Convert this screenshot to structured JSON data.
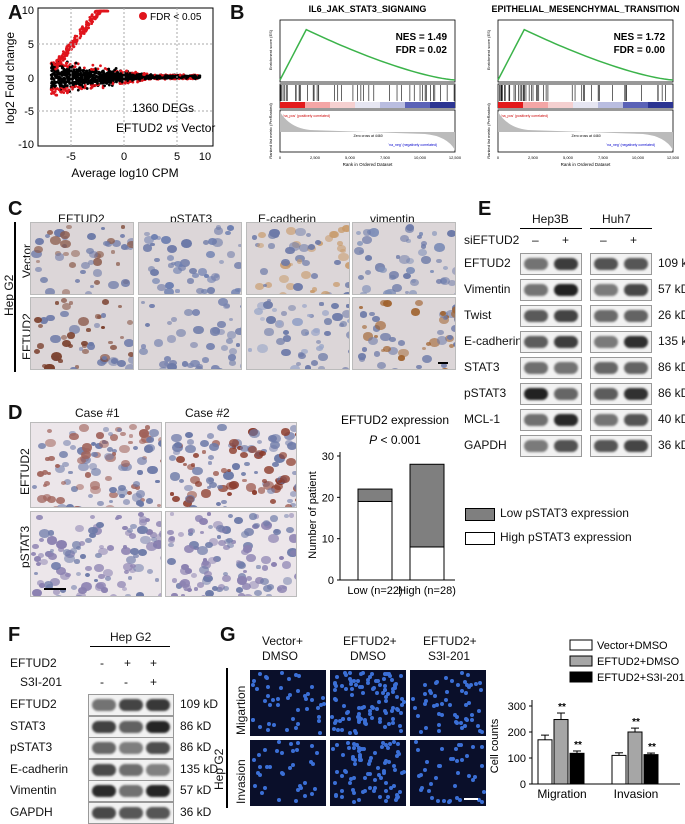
{
  "panels": {
    "A": "A",
    "B": "B",
    "C": "C",
    "D": "D",
    "E": "E",
    "F": "F",
    "G": "G"
  },
  "panelA": {
    "ylabel": "log2 Fold change",
    "xlabel": "Average log10 CPM",
    "legend": "FDR < 0.05",
    "annotation1": "1360 DEGs",
    "annotation2_a": "EFTUD2",
    "annotation2_vs": "vs",
    "annotation2_b": "Vector",
    "xticks": [
      "-5",
      "0",
      "5",
      "10"
    ],
    "yticks": [
      "10",
      "5",
      "0",
      "-5",
      "-10"
    ],
    "colors": {
      "sig": "#e0141c",
      "nonsig": "#000000"
    }
  },
  "panelB": {
    "plots": [
      {
        "title": "IL6_JAK_STAT3_SIGNAING",
        "nes": "NES = 1.49",
        "fdr": "FDR = 0.02"
      },
      {
        "title": "EPITHELIAL_MESENCHYMAL_TRANSITION",
        "nes": "NES = 1.72",
        "fdr": "FDR = 0.00"
      }
    ],
    "enrichment_ylabel": "Enrichment score (ES)",
    "ranked_ylabel": "Ranked list metric (PreRanked)",
    "xlabel": "Rank in Ordered Dataset",
    "pos_label": "'na_pos' (positively correlated)",
    "neg_label": "'na_neg' (negatively correlated)",
    "zero_cross": "Zero cross at 4460",
    "xticks": [
      "0",
      "2,500",
      "5,000",
      "7,500",
      "10,000",
      "12,500"
    ],
    "colors": {
      "curve": "#3bb34a"
    }
  },
  "panelC": {
    "columns": [
      "EFTUD2",
      "pSTAT3",
      "E-cadherin",
      "vimentin"
    ],
    "rows": [
      "Vector",
      "EFTUD2"
    ],
    "cell_line": "Hep G2"
  },
  "panelD": {
    "cases": [
      "Case #1",
      "Case #2"
    ],
    "rows": [
      "EFTUD2",
      "pSTAT3"
    ],
    "chart_title": "EFTUD2 expression",
    "pvalue_p": "P",
    "pvalue_rest": " < 0.001",
    "ylabel": "Number of patient",
    "legend": [
      "Low pSTAT3 expression",
      "High pSTAT3 expression"
    ],
    "yticks": [
      "0",
      "10",
      "20",
      "30"
    ]
  },
  "chart_data": [
    {
      "type": "bar",
      "title": "EFTUD2 expression",
      "categories": [
        "Low (n=22)",
        "High (n=28)"
      ],
      "series": [
        {
          "name": "High pSTAT3 expression",
          "values": [
            19,
            8
          ],
          "color": "#ffffff"
        },
        {
          "name": "Low pSTAT3 expression",
          "values": [
            3,
            20
          ],
          "color": "#7f7f7f"
        }
      ],
      "stacked": true,
      "ylabel": "Number of patient",
      "ylim": [
        0,
        30
      ],
      "grid": false,
      "legend": "right"
    },
    {
      "type": "bar",
      "title": "",
      "categories": [
        "Migration",
        "Invasion"
      ],
      "series": [
        {
          "name": "Vector+DMSO",
          "values": [
            170,
            110
          ],
          "errors": [
            18,
            10
          ],
          "color": "#ffffff"
        },
        {
          "name": "EFTUD2+DMSO",
          "values": [
            248,
            200
          ],
          "errors": [
            25,
            15
          ],
          "color": "#a6a6a6"
        },
        {
          "name": "EFTUD2+S3I-201",
          "values": [
            118,
            113
          ],
          "errors": [
            9,
            6
          ],
          "color": "#000000"
        }
      ],
      "significance": [
        [
          "",
          "**",
          "**"
        ],
        [
          "",
          "**",
          "**"
        ]
      ],
      "ylabel": "Cell counts",
      "ylim": [
        0,
        300
      ],
      "yticks": [
        "0",
        "100",
        "200",
        "300"
      ],
      "legend": "top"
    }
  ],
  "panelE": {
    "cell_lines": [
      "Hep3B",
      "Huh7"
    ],
    "treatment": "siEFTUD2",
    "signs": [
      "–",
      "+",
      "–",
      "+"
    ],
    "rows": [
      {
        "name": "EFTUD2",
        "kd": "109 kD"
      },
      {
        "name": "Vimentin",
        "kd": "57 kD"
      },
      {
        "name": "Twist",
        "kd": "26 kD"
      },
      {
        "name": "E-cadherin",
        "kd": "135 kD"
      },
      {
        "name": "STAT3",
        "kd": "86 kD"
      },
      {
        "name": "pSTAT3",
        "kd": "86 kD"
      },
      {
        "name": "MCL-1",
        "kd": "40 kD"
      },
      {
        "name": "GAPDH",
        "kd": "36 kD"
      }
    ]
  },
  "panelF": {
    "cell_line": "Hep G2",
    "conditions": [
      {
        "name": "EFTUD2",
        "signs": [
          "-",
          "+",
          "+"
        ]
      },
      {
        "name": "S3I-201",
        "signs": [
          "-",
          "-",
          "+"
        ]
      }
    ],
    "rows": [
      {
        "name": "EFTUD2",
        "kd": "109 kD"
      },
      {
        "name": "STAT3",
        "kd": "86 kD"
      },
      {
        "name": "pSTAT3",
        "kd": "86 kD"
      },
      {
        "name": "E-cadherin",
        "kd": "135 kD"
      },
      {
        "name": "Vimentin",
        "kd": "57 kD"
      },
      {
        "name": "GAPDH",
        "kd": "36 kD"
      }
    ]
  },
  "panelG": {
    "columns": [
      "Vector+",
      "DMSO",
      "EFTUD2+",
      "DMSO",
      "EFTUD2+",
      "S3I-201"
    ],
    "rows": [
      "Migartion",
      "Invasion"
    ],
    "cell_line": "Hep G2"
  }
}
